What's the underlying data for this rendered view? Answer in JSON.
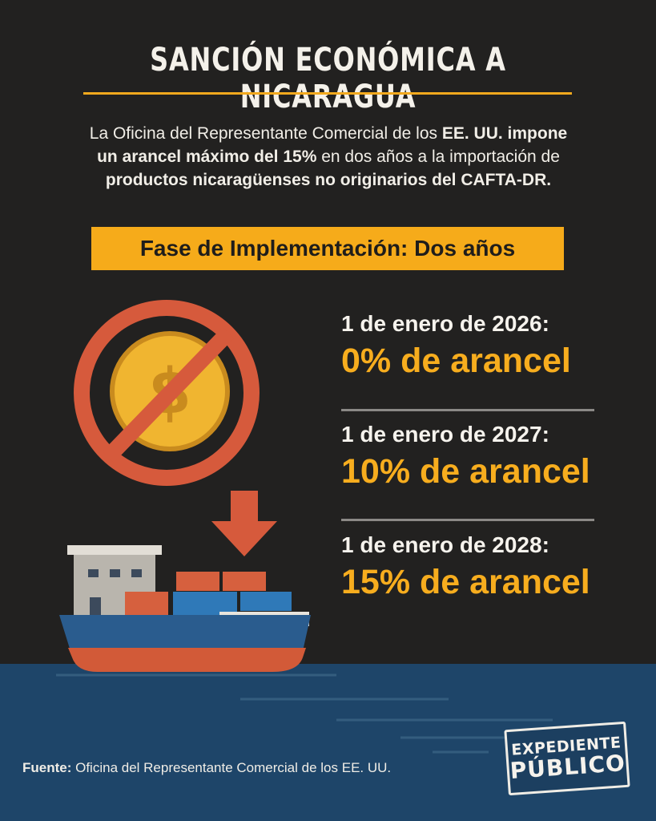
{
  "title": "SANCIÓN ECONÓMICA A NICARAGUA",
  "intro": {
    "p1": "La Oficina del Representante Comercial de los ",
    "b1": "EE. UU. impone",
    "b2": "un arancel máximo del 15%",
    "p2": " en dos años a la importación de",
    "b3": "productos nicaragüenses no originarios del CAFTA-DR."
  },
  "phase_label": "Fase de Implementación: Dos años",
  "milestones": [
    {
      "date": "1 de enero de 2026:",
      "value": "0% de arancel"
    },
    {
      "date": "1 de enero de 2027:",
      "value": "10% de arancel"
    },
    {
      "date": "1 de enero de 2028:",
      "value": "15% de arancel"
    }
  ],
  "source": {
    "label": "Fuente:",
    "text": " Oficina del Representante Comercial de los EE. UU."
  },
  "logo": {
    "line1": "EXPEDIENTE",
    "line2": "PÚBLICO"
  },
  "colors": {
    "background": "#222120",
    "accent": "#f6ab1a",
    "prohibit_red": "#d65a3c",
    "coin_gold": "#f0b530",
    "sea_blue": "#1e4569"
  },
  "icons": {
    "coin": "dollar-coin-icon",
    "prohibit": "prohibition-icon",
    "arrow": "down-arrow-icon",
    "ship": "cargo-ship-icon"
  }
}
